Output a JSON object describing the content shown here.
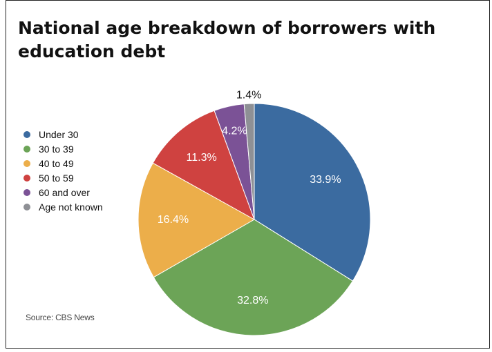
{
  "title": "National age breakdown of borrowers with education debt",
  "source": "Source: CBS News",
  "chart_data": {
    "type": "pie",
    "title": "National age breakdown of borrowers with education debt",
    "legend_position": "left",
    "slices": [
      {
        "label": "Under 30",
        "value": 33.9,
        "display": "33.9%",
        "color": "#3b6ba0"
      },
      {
        "label": "30 to 39",
        "value": 32.8,
        "display": "32.8%",
        "color": "#6ca457"
      },
      {
        "label": "40 to 49",
        "value": 16.4,
        "display": "16.4%",
        "color": "#ecae4a"
      },
      {
        "label": "50 to 59",
        "value": 11.3,
        "display": "11.3%",
        "color": "#cf4240"
      },
      {
        "label": "60 and over",
        "value": 4.2,
        "display": "4.2%",
        "color": "#7b5296"
      },
      {
        "label": "Age not known",
        "value": 1.4,
        "display": "1.4%",
        "color": "#8e9095"
      }
    ]
  }
}
